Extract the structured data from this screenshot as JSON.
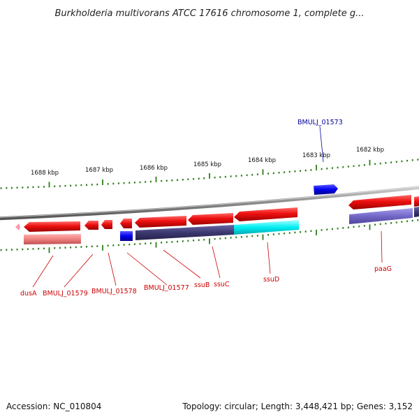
{
  "title": "Burkholderia multivorans ATCC 17616 chromosome 1, complete g...",
  "footer": {
    "accession": "Accession: NC_010804",
    "stats": "Topology: circular; Length: 3,448,421 bp; Genes: 3,152"
  },
  "scale_labels": [
    "1688 kbp",
    "1687 kbp",
    "1686 kbp",
    "1685 kbp",
    "1684 kbp",
    "1683 kbp",
    "1682 kbp"
  ],
  "gene_labels": {
    "top": [
      "BMULJ_01573"
    ],
    "bottom": [
      "dusA",
      "BMULJ_01579",
      "BMULJ_01578",
      "BMULJ_01577",
      "ssuB",
      "ssuC",
      "ssuD",
      "paaG"
    ]
  },
  "colors": {
    "gene_forward": "#e60000",
    "gene_reverse": "#e60000",
    "gene_blue": "#0000ee",
    "cds_purple": "#3f3c73",
    "cds_lavender": "#7a70cc",
    "cds_cyan": "#00e8f0",
    "cds_pink": "#e88080",
    "backbone": "#888888",
    "tick": "#2e7d1a",
    "label_red": "#cc0000",
    "label_blue": "#000099"
  }
}
